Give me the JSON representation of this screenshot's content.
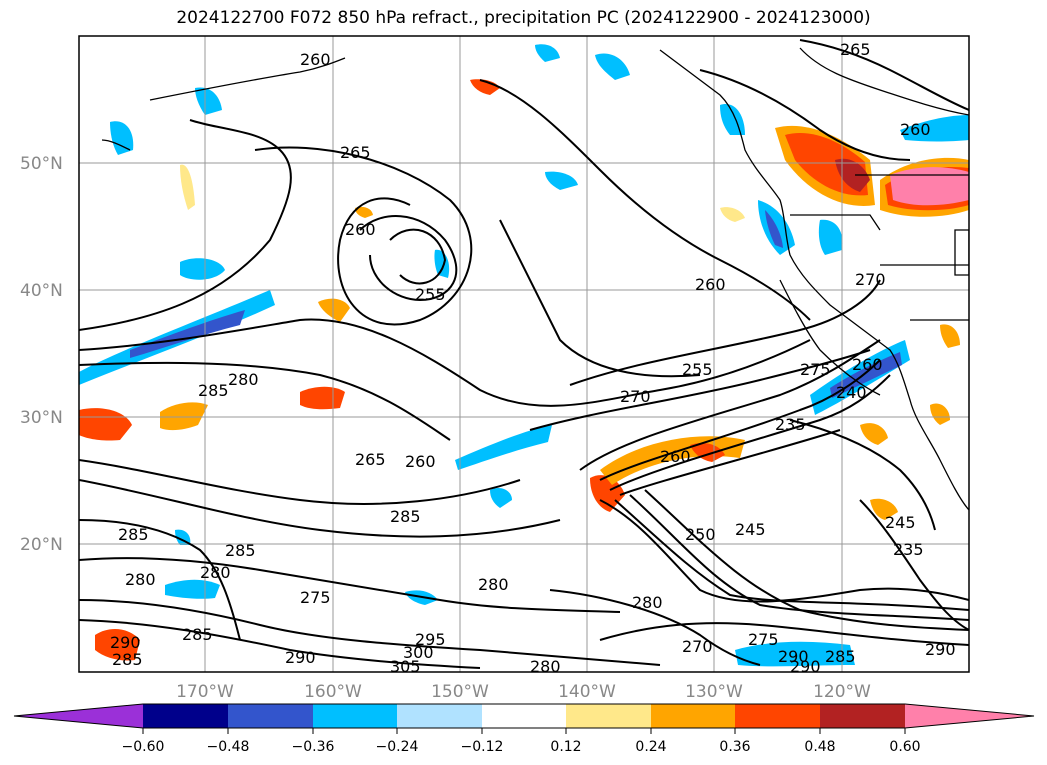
{
  "title": "2024122700 F072 850 hPa refract., precipitation PC (2024122900 - 2024123000)",
  "lat_labels": [
    "50°N",
    "40°N",
    "30°N",
    "20°N"
  ],
  "lon_labels": [
    "170°W",
    "160°W",
    "150°W",
    "140°W",
    "130°W",
    "120°W"
  ],
  "contour_labels": [
    "260",
    "265",
    "265",
    "260",
    "260",
    "255",
    "260",
    "255",
    "270",
    "275",
    "260",
    "240",
    "235",
    "270",
    "265",
    "260",
    "285",
    "280",
    "285",
    "285",
    "280",
    "275",
    "285",
    "280",
    "285",
    "280",
    "290",
    "285",
    "290",
    "295",
    "300",
    "305",
    "280",
    "270",
    "280",
    "250",
    "245",
    "245",
    "235",
    "290",
    "275",
    "290",
    "285",
    "290",
    "260"
  ],
  "colorbar": {
    "ticks": [
      "−0.60",
      "−0.48",
      "−0.36",
      "−0.24",
      "−0.12",
      "0.12",
      "0.24",
      "0.36",
      "0.48",
      "0.60"
    ],
    "colors": [
      "#9b30d8",
      "#00008b",
      "#3355cc",
      "#00bfff",
      "#b0e2ff",
      "#ffffff",
      "#ffe88a",
      "#ffa500",
      "#ff4500",
      "#b22222",
      "#ff80aa"
    ]
  }
}
